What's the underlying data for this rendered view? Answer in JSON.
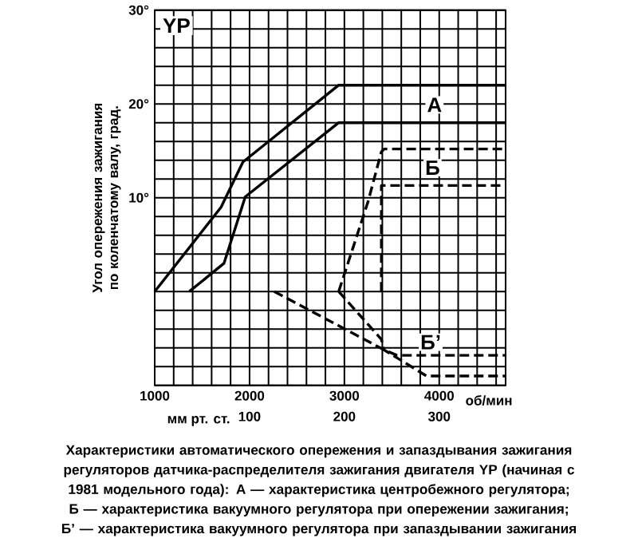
{
  "chart_data": {
    "type": "line",
    "title": "YP",
    "xlabel": "об/мин",
    "ylabel": "Угол опережения зажигания по коленчатому валу, град.",
    "x2label": "мм рт. ст.",
    "xlim": [
      1000,
      4700
    ],
    "ylim": [
      -10,
      30
    ],
    "x2lim": [
      0,
      370
    ],
    "xticks": [
      1000,
      {
        "value": 1200,
        "label": null
      },
      {
        "value": 1400,
        "label": null
      },
      {
        "value": 1600,
        "label": null
      },
      {
        "value": 1800,
        "label": null
      },
      2000,
      {
        "value": 2200,
        "label": null
      },
      {
        "value": 2400,
        "label": null
      },
      {
        "value": 2600,
        "label": null
      },
      {
        "value": 2800,
        "label": null
      },
      3000,
      {
        "value": 3200,
        "label": null
      },
      {
        "value": 3400,
        "label": null
      },
      {
        "value": 3600,
        "label": null
      },
      {
        "value": 3800,
        "label": null
      },
      4000,
      {
        "value": 4200,
        "label": null
      },
      {
        "value": 4400,
        "label": null
      },
      {
        "value": 4600,
        "label": null
      }
    ],
    "yticks": [
      {
        "value": -10,
        "label": null
      },
      {
        "value": -8,
        "label": null
      },
      {
        "value": -6,
        "label": null
      },
      {
        "value": -4,
        "label": null
      },
      {
        "value": -2,
        "label": null
      },
      {
        "value": 0,
        "label": null
      },
      {
        "value": 2,
        "label": null
      },
      {
        "value": 4,
        "label": null
      },
      {
        "value": 6,
        "label": null
      },
      {
        "value": 8,
        "label": null
      },
      {
        "value": 10,
        "label": "10°"
      },
      {
        "value": 12,
        "label": null
      },
      {
        "value": 14,
        "label": null
      },
      {
        "value": 16,
        "label": null
      },
      {
        "value": 18,
        "label": null
      },
      {
        "value": 20,
        "label": "20°"
      },
      {
        "value": 22,
        "label": null
      },
      {
        "value": 24,
        "label": null
      },
      {
        "value": 26,
        "label": null
      },
      {
        "value": 28,
        "label": null
      },
      {
        "value": 30,
        "label": "30°"
      }
    ],
    "x2ticks": [
      100,
      200,
      300
    ],
    "grid": true,
    "marker": "none",
    "series": [
      {
        "color": "#000000",
        "line_style": "solid",
        "x": [
          1000,
          1700,
          1930,
          2940,
          4700
        ],
        "values": [
          0,
          9,
          13.8,
          22,
          22
        ]
      },
      {
        "color": "#000000",
        "line_style": "solid",
        "x": [
          1365,
          1730,
          1955,
          2940,
          4700
        ],
        "values": [
          0,
          3,
          10.1,
          18,
          18
        ]
      },
      {
        "color": "#000000",
        "line_style": "dashed",
        "x": [
          2940,
          3250,
          3390,
          3420,
          4700
        ],
        "values": [
          0,
          9.6,
          14.9,
          15.2,
          15.2
        ]
      },
      {
        "color": "#000000",
        "line_style": "dashed",
        "x": [
          3390,
          3390,
          4700
        ],
        "values": [
          0,
          11.3,
          11.3
        ]
      },
      {
        "color": "#000000",
        "line_style": "dashed",
        "x": [
          2260,
          3415,
          3555,
          4700
        ],
        "values": [
          0,
          -6.2,
          -6.8,
          -6.8
        ]
      },
      {
        "color": "#000000",
        "line_style": "dashed",
        "x": [
          2940,
          3390,
          3415,
          3865,
          4700
        ],
        "values": [
          0,
          -5.1,
          -6.2,
          -9,
          -9
        ]
      }
    ],
    "annotations": [
      {
        "text": "А",
        "x": 3950,
        "y": 19.9
      },
      {
        "text": "Б",
        "x": 3930,
        "y": 13.2
      },
      {
        "text": "Б’",
        "x": 3910,
        "y": -5.4
      },
      "Характеристики автоматического опережения и запаздывания зажигания регуляторов датчика-распределителя зажигания двигателя YP (начиная с 1981 модельного года): А — характеристика центробежного регулятора; Б — характеристика вакуумного регулятора при опережении зажигания; Б’ — характеристика вакуумного регулятора при запаздывании зажигания"
    ]
  }
}
